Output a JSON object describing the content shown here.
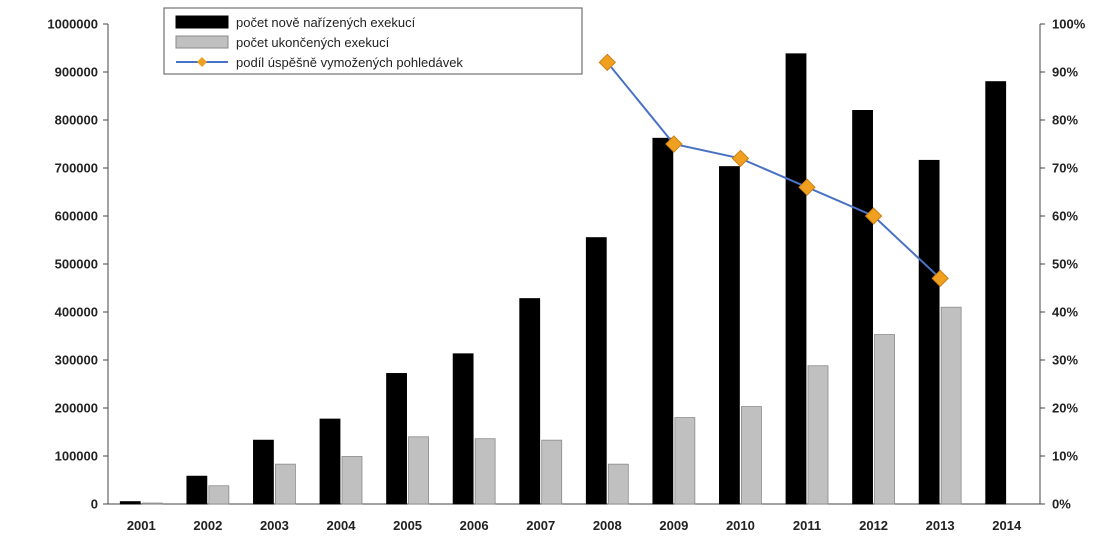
{
  "chart_data": {
    "type": "bar",
    "categories": [
      "2001",
      "2002",
      "2003",
      "2004",
      "2005",
      "2006",
      "2007",
      "2008",
      "2009",
      "2010",
      "2011",
      "2012",
      "2013",
      "2014"
    ],
    "series": [
      {
        "name": "počet nově nařízených exekucí",
        "kind": "bar",
        "axis": "left",
        "color": "#000000",
        "values": [
          5000,
          58000,
          133000,
          177000,
          272000,
          313000,
          428000,
          555000,
          762000,
          703000,
          938000,
          820000,
          716000,
          880000
        ]
      },
      {
        "name": "počet ukončených exekucí",
        "kind": "bar",
        "axis": "left",
        "color": "#c0c0c0",
        "values": [
          2000,
          38000,
          83000,
          99000,
          140000,
          136000,
          133000,
          83000,
          180000,
          203000,
          288000,
          353000,
          410000,
          null
        ]
      },
      {
        "name": "podíl úspěšně vymožených pohledávek",
        "kind": "line",
        "axis": "right",
        "line_color": "#4a72c4",
        "marker_color": "#f0a020",
        "values": [
          null,
          null,
          null,
          null,
          null,
          null,
          null,
          92,
          75,
          72,
          66,
          60,
          47,
          null
        ]
      }
    ],
    "y_left": {
      "ylim": [
        0,
        1000000
      ],
      "ticks": [
        "0",
        "100000",
        "200000",
        "300000",
        "400000",
        "500000",
        "600000",
        "700000",
        "800000",
        "900000",
        "1000000"
      ]
    },
    "y_right": {
      "ylim": [
        0,
        100
      ],
      "ticks": [
        "0%",
        "10%",
        "20%",
        "30%",
        "40%",
        "50%",
        "60%",
        "70%",
        "80%",
        "90%",
        "100%"
      ]
    },
    "grid": false,
    "legend_position": "top-left"
  }
}
